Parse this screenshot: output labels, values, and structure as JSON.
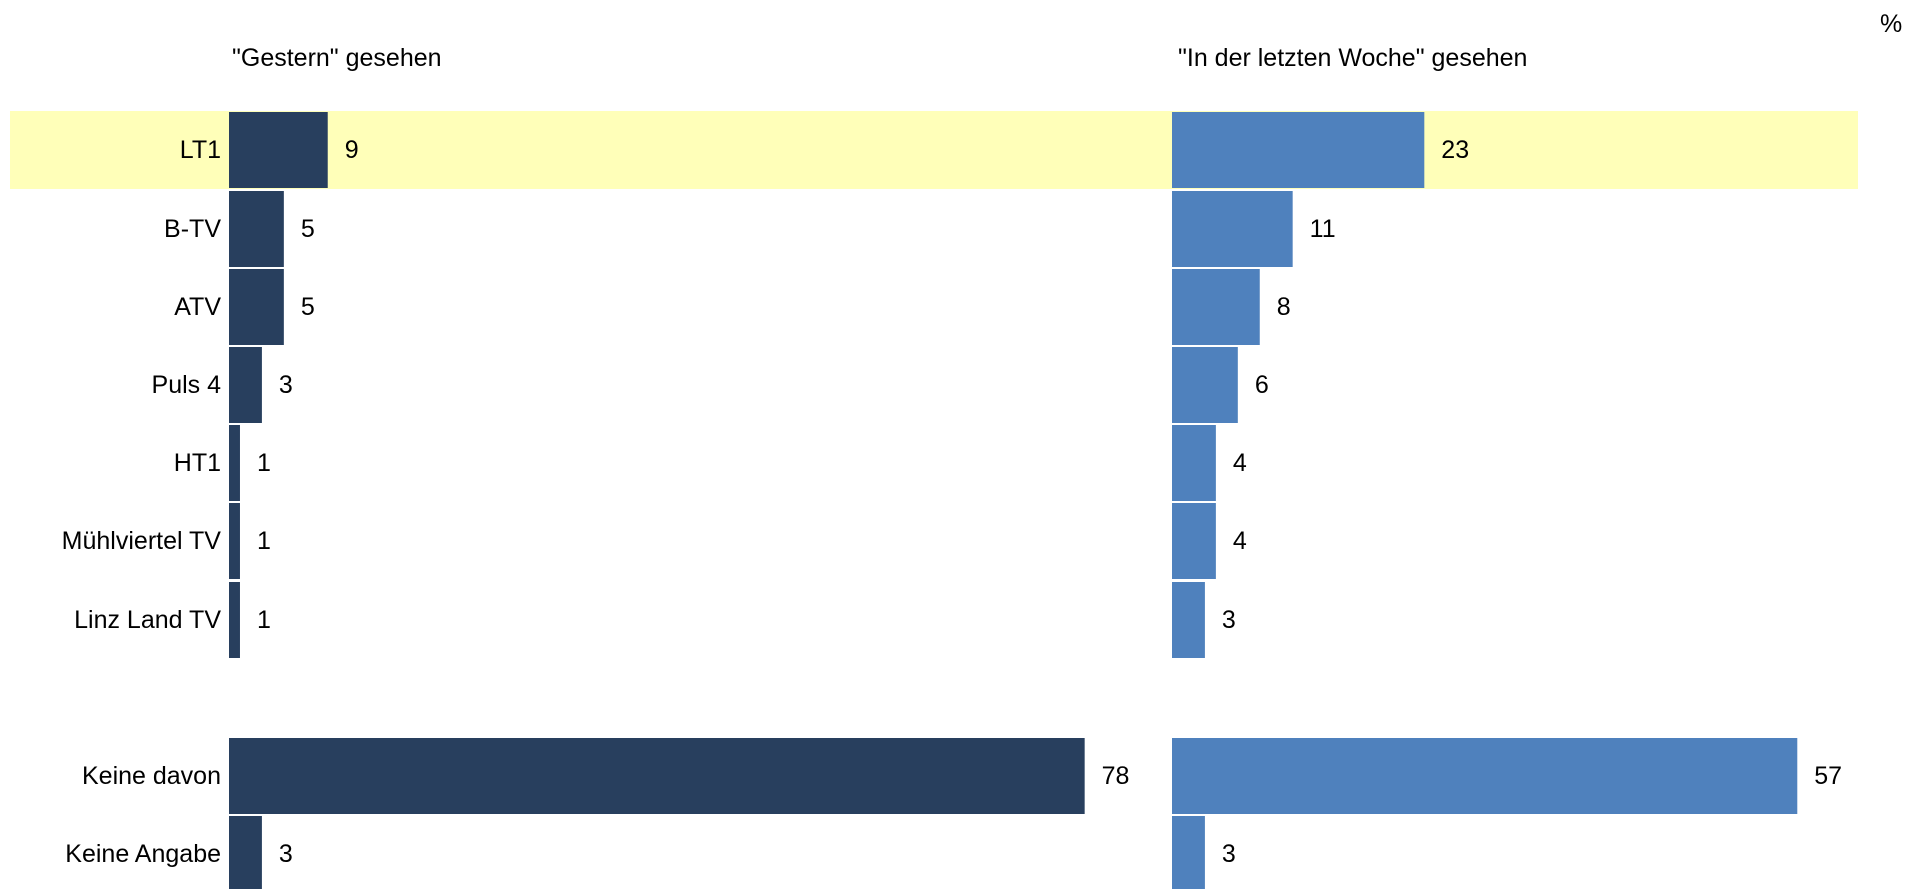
{
  "unit": "%",
  "colors": {
    "highlight": "#FFFFB9",
    "left_series": "#283F5E",
    "right_series": "#4F81BD"
  },
  "chart_data": {
    "type": "bar",
    "orientation": "horizontal",
    "unit": "%",
    "highlighted_category": "LT1",
    "categories": [
      "LT1",
      "B-TV",
      "ATV",
      "Puls 4",
      "HT1",
      "Mühlviertel TV",
      "Linz Land TV",
      "Keine davon",
      "Keine Angabe"
    ],
    "series": [
      {
        "name": "\"Gestern\" gesehen",
        "color": "#283F5E",
        "values": [
          9,
          5,
          5,
          3,
          1,
          1,
          1,
          78,
          3
        ]
      },
      {
        "name": "\"In der letzten Woche\" gesehen",
        "color": "#4F81BD",
        "values": [
          23,
          11,
          8,
          6,
          4,
          4,
          3,
          57,
          3
        ]
      }
    ],
    "grid": false,
    "legend": "none"
  }
}
